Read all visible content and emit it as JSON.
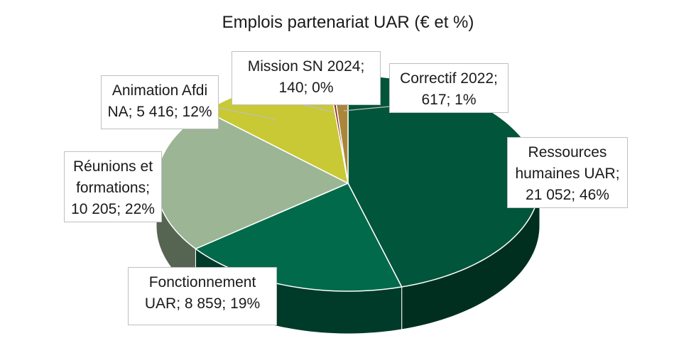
{
  "chart_data": {
    "type": "pie",
    "title": "Emplois partenariat UAR (€ et %)",
    "slices": [
      {
        "name": "Ressources humaines UAR",
        "value": 21052,
        "percent": 46,
        "color": "#00553a",
        "label_lines": [
          "Ressources",
          "humaines UAR;",
          "21 052; 46%"
        ]
      },
      {
        "name": "Fonctionnement UAR",
        "value": 8859,
        "percent": 19,
        "color": "#006a4b",
        "label_lines": [
          "Fonctionnement",
          "UAR; 8 859; 19%"
        ]
      },
      {
        "name": "Réunions et formations",
        "value": 10205,
        "percent": 22,
        "color": "#9cb595",
        "label_lines": [
          "Réunions et",
          "formations;",
          "10 205; 22%"
        ]
      },
      {
        "name": "Animation Afdi NA",
        "value": 5416,
        "percent": 12,
        "color": "#c8c934",
        "label_lines": [
          "Animation Afdi",
          "NA; 5 416; 12%"
        ]
      },
      {
        "name": "Mission SN 2024",
        "value": 140,
        "percent": 0,
        "color": "#8b2d1e",
        "label_lines": [
          "Mission SN 2024;",
          "140; 0%"
        ]
      },
      {
        "name": "Correctif 2022",
        "value": 617,
        "percent": 1,
        "color": "#a9863a",
        "label_lines": [
          "Correctif 2022;",
          "617; 1%"
        ]
      }
    ]
  }
}
